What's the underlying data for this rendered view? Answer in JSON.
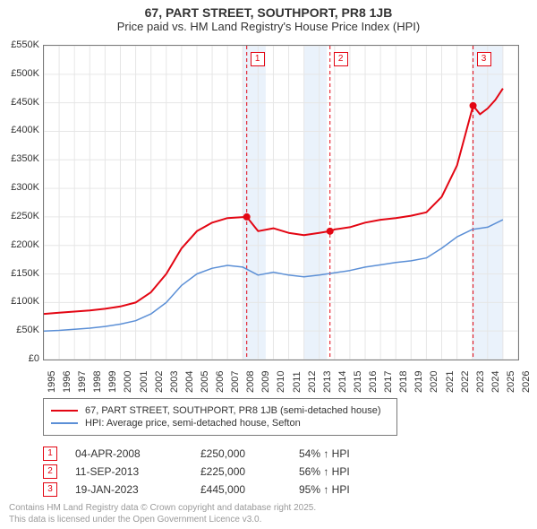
{
  "title_line1": "67, PART STREET, SOUTHPORT, PR8 1JB",
  "title_line2": "Price paid vs. HM Land Registry's House Price Index (HPI)",
  "title_fontsize": 14,
  "subtitle_fontsize": 13,
  "chart": {
    "type": "line",
    "background_color": "#ffffff",
    "grid_color": "#e6e6e6",
    "grid_major_color": "#d9d9d9",
    "axis_color": "#7a7a7a",
    "shaded_color": "#eaf2fb",
    "xlim": [
      1995,
      2026
    ],
    "ylim": [
      0,
      550000
    ],
    "ytick_step": 50000,
    "ytick_labels": [
      "£0",
      "£50K",
      "£100K",
      "£150K",
      "£200K",
      "£250K",
      "£300K",
      "£350K",
      "£400K",
      "£450K",
      "£500K",
      "£550K"
    ],
    "xtick_step": 1,
    "xtick_years": [
      1995,
      1996,
      1997,
      1998,
      1999,
      2000,
      2001,
      2002,
      2003,
      2004,
      2005,
      2006,
      2007,
      2008,
      2009,
      2010,
      2011,
      2012,
      2013,
      2014,
      2015,
      2016,
      2017,
      2018,
      2019,
      2020,
      2021,
      2022,
      2023,
      2024,
      2025,
      2026
    ],
    "shaded_ranges": [
      [
        2008.0,
        2009.5
      ],
      [
        2012.0,
        2013.5
      ],
      [
        2023.0,
        2025.0
      ]
    ],
    "series": [
      {
        "name": "property_price",
        "label": "67, PART STREET, SOUTHPORT, PR8 1JB (semi-detached house)",
        "color": "#e30613",
        "line_width": 2,
        "data": [
          [
            1995,
            80000
          ],
          [
            1996,
            82000
          ],
          [
            1997,
            84000
          ],
          [
            1998,
            86000
          ],
          [
            1999,
            89000
          ],
          [
            2000,
            93000
          ],
          [
            2001,
            100000
          ],
          [
            2002,
            118000
          ],
          [
            2003,
            150000
          ],
          [
            2004,
            195000
          ],
          [
            2005,
            225000
          ],
          [
            2006,
            240000
          ],
          [
            2007,
            248000
          ],
          [
            2008.26,
            250000
          ],
          [
            2009,
            225000
          ],
          [
            2010,
            230000
          ],
          [
            2011,
            222000
          ],
          [
            2012,
            218000
          ],
          [
            2013,
            222000
          ],
          [
            2013.7,
            225000
          ],
          [
            2014,
            228000
          ],
          [
            2015,
            232000
          ],
          [
            2016,
            240000
          ],
          [
            2017,
            245000
          ],
          [
            2018,
            248000
          ],
          [
            2019,
            252000
          ],
          [
            2020,
            258000
          ],
          [
            2021,
            285000
          ],
          [
            2022,
            340000
          ],
          [
            2022.6,
            400000
          ],
          [
            2023.05,
            445000
          ],
          [
            2023.5,
            430000
          ],
          [
            2024,
            440000
          ],
          [
            2024.5,
            455000
          ],
          [
            2025,
            475000
          ]
        ]
      },
      {
        "name": "hpi_avg",
        "label": "HPI: Average price, semi-detached house, Sefton",
        "color": "#5b8fd6",
        "line_width": 1.5,
        "data": [
          [
            1995,
            50000
          ],
          [
            1996,
            51000
          ],
          [
            1997,
            53000
          ],
          [
            1998,
            55000
          ],
          [
            1999,
            58000
          ],
          [
            2000,
            62000
          ],
          [
            2001,
            68000
          ],
          [
            2002,
            80000
          ],
          [
            2003,
            100000
          ],
          [
            2004,
            130000
          ],
          [
            2005,
            150000
          ],
          [
            2006,
            160000
          ],
          [
            2007,
            165000
          ],
          [
            2008,
            162000
          ],
          [
            2009,
            148000
          ],
          [
            2010,
            153000
          ],
          [
            2011,
            148000
          ],
          [
            2012,
            145000
          ],
          [
            2013,
            148000
          ],
          [
            2014,
            152000
          ],
          [
            2015,
            156000
          ],
          [
            2016,
            162000
          ],
          [
            2017,
            166000
          ],
          [
            2018,
            170000
          ],
          [
            2019,
            173000
          ],
          [
            2020,
            178000
          ],
          [
            2021,
            195000
          ],
          [
            2022,
            215000
          ],
          [
            2023,
            228000
          ],
          [
            2024,
            232000
          ],
          [
            2025,
            245000
          ]
        ]
      }
    ],
    "sale_markers": [
      {
        "n": "1",
        "year": 2008.26,
        "price": 250000,
        "color": "#e30613"
      },
      {
        "n": "2",
        "year": 2013.7,
        "price": 225000,
        "color": "#e30613"
      },
      {
        "n": "3",
        "year": 2023.05,
        "price": 445000,
        "color": "#e30613"
      }
    ],
    "label_fontsize": 11
  },
  "legend": {
    "items": [
      {
        "color": "#e30613",
        "label": "67, PART STREET, SOUTHPORT, PR8 1JB (semi-detached house)"
      },
      {
        "color": "#5b8fd6",
        "label": "HPI: Average price, semi-detached house, Sefton"
      }
    ]
  },
  "sales_table": {
    "rows": [
      {
        "n": "1",
        "color": "#e30613",
        "date": "04-APR-2008",
        "price": "£250,000",
        "hpi": "54% ↑ HPI"
      },
      {
        "n": "2",
        "color": "#e30613",
        "date": "11-SEP-2013",
        "price": "£225,000",
        "hpi": "56% ↑ HPI"
      },
      {
        "n": "3",
        "color": "#e30613",
        "date": "19-JAN-2023",
        "price": "£445,000",
        "hpi": "95% ↑ HPI"
      }
    ]
  },
  "footer_line1": "Contains HM Land Registry data © Crown copyright and database right 2025.",
  "footer_line2": "This data is licensed under the Open Government Licence v3.0."
}
